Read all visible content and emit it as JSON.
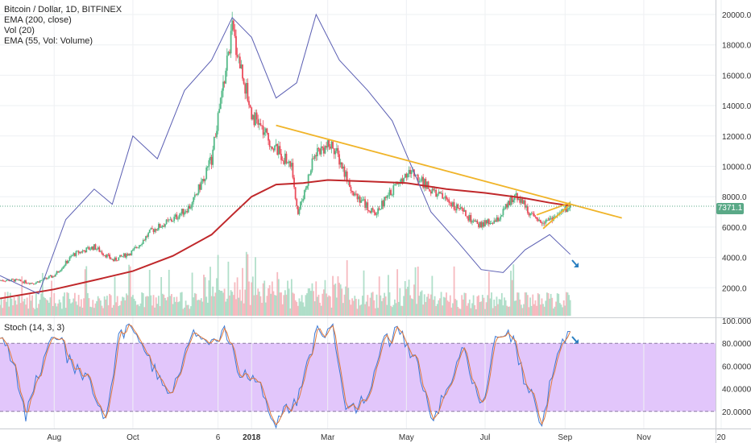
{
  "legend": {
    "title": "Bitcoin / Dollar, 1D, BITFINEX",
    "ema200": "EMA (200, close)",
    "vol": "Vol (20)",
    "ema55": "EMA (55, Vol: Volume)"
  },
  "stoch_title": "Stoch (14, 3, 3)",
  "last_price_label": "7371.1",
  "colors": {
    "up": "#53b987",
    "down": "#eb4d5c",
    "ema": "#c0282b",
    "overlay": "#5b5fb3",
    "trend": "#f0b429",
    "stoch_band": "#e2c6fb",
    "arrow": "#2a7fc1"
  },
  "chart_data": [
    {
      "type": "line",
      "title": "Bitcoin / Dollar, 1D, BITFINEX",
      "ylim": [
        0,
        21000
      ],
      "y_ticks": [
        "2000.0",
        "4000.0",
        "6000.0",
        "8000.0",
        "10000.0",
        "12000.0",
        "14000.0",
        "16000.0",
        "18000.0",
        "20000.0"
      ],
      "x_tick_labels": [
        "Aug",
        "Oct",
        "6",
        "2018",
        "Mar",
        "May",
        "Jul",
        "Sep",
        "Nov",
        "20"
      ],
      "series": [
        {
          "name": "",
          "kind": "price",
          "x": [
            "2017-07-01",
            "2017-07-16",
            "2017-08-01",
            "2017-08-16",
            "2017-09-01",
            "2017-09-16",
            "2017-10-01",
            "2017-10-16",
            "2017-11-01",
            "2017-11-16",
            "2017-12-01",
            "2017-12-17",
            "2018-01-01",
            "2018-01-16",
            "2018-02-01",
            "2018-02-06",
            "2018-02-20",
            "2018-03-05",
            "2018-03-20",
            "2018-04-06",
            "2018-04-25",
            "2018-05-05",
            "2018-05-20",
            "2018-06-05",
            "2018-06-25",
            "2018-07-10",
            "2018-07-25",
            "2018-08-10",
            "2018-08-25",
            "2018-09-05"
          ],
          "values": [
            2500,
            2300,
            2800,
            4200,
            4700,
            3800,
            4400,
            5800,
            6500,
            7500,
            10500,
            19000,
            13500,
            11500,
            10000,
            6900,
            11000,
            11400,
            8500,
            6800,
            9000,
            9700,
            8400,
            7600,
            6100,
            6400,
            8200,
            6300,
            6700,
            7371
          ]
        },
        {
          "name": "EMA (200, close)",
          "kind": "ema",
          "x": [
            "2017-06-20",
            "2017-08-01",
            "2017-09-01",
            "2017-10-01",
            "2017-11-01",
            "2017-12-01",
            "2017-12-17",
            "2018-01-01",
            "2018-01-20",
            "2018-02-10",
            "2018-03-01",
            "2018-04-01",
            "2018-05-01",
            "2018-06-01",
            "2018-07-01",
            "2018-08-01",
            "2018-08-20",
            "2018-09-05"
          ],
          "values": [
            1300,
            1900,
            2500,
            3100,
            4100,
            5500,
            6800,
            8000,
            8800,
            8900,
            9100,
            9000,
            8900,
            8500,
            8250,
            7900,
            7600,
            7400
          ]
        },
        {
          "name": "",
          "kind": "overlay",
          "x": [
            "2017-06-20",
            "2017-07-20",
            "2017-08-10",
            "2017-09-01",
            "2017-09-15",
            "2017-10-01",
            "2017-10-20",
            "2017-11-10",
            "2017-12-01",
            "2017-12-17",
            "2018-01-01",
            "2018-01-20",
            "2018-02-05",
            "2018-02-20",
            "2018-03-10",
            "2018-04-01",
            "2018-04-20",
            "2018-05-05",
            "2018-05-20",
            "2018-06-10",
            "2018-06-28",
            "2018-07-15",
            "2018-08-01",
            "2018-08-20",
            "2018-09-05"
          ],
          "values": [
            2800,
            1600,
            6500,
            8500,
            7500,
            12000,
            10500,
            15000,
            17000,
            19800,
            18500,
            14500,
            15500,
            20000,
            17000,
            15000,
            13000,
            10000,
            7000,
            5000,
            3200,
            3000,
            4500,
            5500,
            4200
          ]
        },
        {
          "name": "",
          "kind": "triangle_upper",
          "x": [
            "2018-01-20",
            "2018-10-15"
          ],
          "values": [
            12700,
            6600
          ]
        },
        {
          "name": "",
          "kind": "wedge_upper",
          "x": [
            "2018-08-10",
            "2018-09-05"
          ],
          "values": [
            6800,
            7600
          ]
        },
        {
          "name": "",
          "kind": "wedge_lower",
          "x": [
            "2018-08-15",
            "2018-09-05"
          ],
          "values": [
            5900,
            7500
          ]
        }
      ]
    },
    {
      "type": "line",
      "title": "Stoch (14, 3, 3)",
      "ylim": [
        0,
        100
      ],
      "y_ticks": [
        "20.0000",
        "40.0000",
        "60.0000",
        "80.0000",
        "100.0000"
      ],
      "band": [
        20,
        80
      ],
      "series": [
        {
          "name": "",
          "x": [
            "2017-06-20",
            "2017-07-01",
            "2017-07-10",
            "2017-07-20",
            "2017-08-01",
            "2017-08-15",
            "2017-09-01",
            "2017-09-10",
            "2017-09-20",
            "2017-10-01",
            "2017-10-15",
            "2017-11-01",
            "2017-11-15",
            "2017-12-01",
            "2017-12-12",
            "2017-12-22",
            "2018-01-05",
            "2018-01-20",
            "2018-02-06",
            "2018-02-20",
            "2018-03-05",
            "2018-03-15",
            "2018-04-01",
            "2018-04-10",
            "2018-04-25",
            "2018-05-10",
            "2018-05-20",
            "2018-06-01",
            "2018-06-15",
            "2018-06-28",
            "2018-07-10",
            "2018-07-20",
            "2018-08-01",
            "2018-08-15",
            "2018-08-25",
            "2018-09-05"
          ],
          "values": [
            88,
            60,
            14,
            55,
            92,
            60,
            40,
            15,
            88,
            95,
            60,
            35,
            90,
            85,
            92,
            55,
            45,
            12,
            30,
            88,
            95,
            20,
            30,
            75,
            92,
            60,
            10,
            40,
            75,
            20,
            90,
            92,
            45,
            10,
            70,
            95
          ]
        }
      ]
    }
  ]
}
